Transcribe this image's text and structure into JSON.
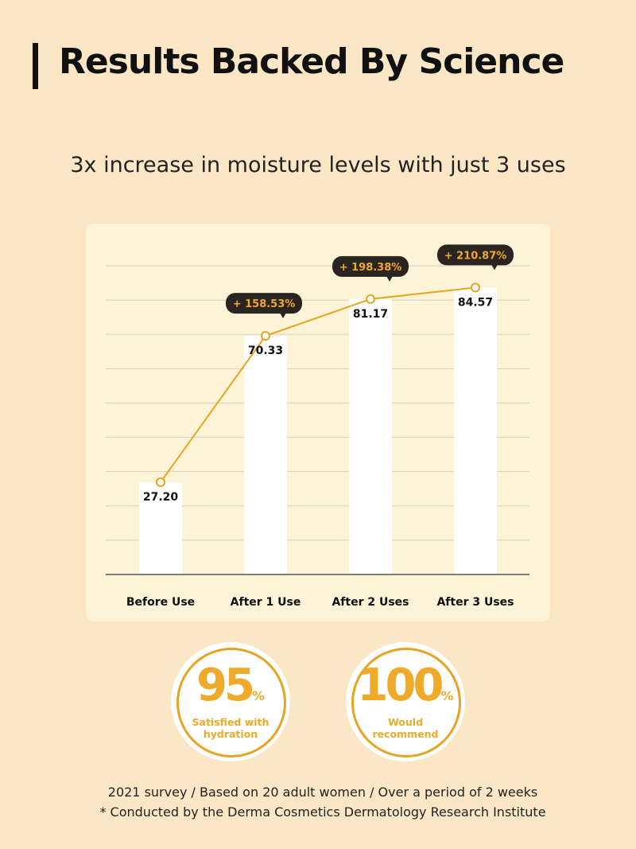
{
  "header": {
    "title": "Results Backed By Science",
    "subtitle": "3x increase in moisture levels with just 3 uses"
  },
  "chart_data": {
    "type": "bar",
    "categories": [
      "Before Use",
      "After 1 Use",
      "After 2 Uses",
      "After 3 Uses"
    ],
    "values": [
      27.2,
      70.33,
      81.17,
      84.57
    ],
    "value_labels": [
      "27.20",
      "70.33",
      "81.17",
      "84.57"
    ],
    "increase_labels": [
      "",
      "+ 158.53%",
      "+ 198.38%",
      "+ 210.87%"
    ],
    "overlay_line": true,
    "ylim": [
      0,
      91
    ],
    "grid": true,
    "title": "",
    "xlabel": "",
    "ylabel": "",
    "colors": {
      "bar": "#ffffff",
      "line": "#e8a420",
      "callout_bg": "#2a2520",
      "callout_text": "#f0a82a",
      "grid": "#d8d2bf"
    }
  },
  "badges": [
    {
      "value": "95",
      "unit": "%",
      "label_line1": "Satisfied with",
      "label_line2": "hydration"
    },
    {
      "value": "100",
      "unit": "%",
      "label_line1": "Would",
      "label_line2": "recommend"
    }
  ],
  "footnotes": {
    "survey": "2021 survey / Based on 20 adult women / Over a period of 2 weeks",
    "institute": "* Conducted by the Derma Cosmetics Dermatology Research Institute"
  },
  "colors": {
    "background": "#fbe7c6",
    "card": "#fdf3d6",
    "accent": "#eeaa28"
  }
}
